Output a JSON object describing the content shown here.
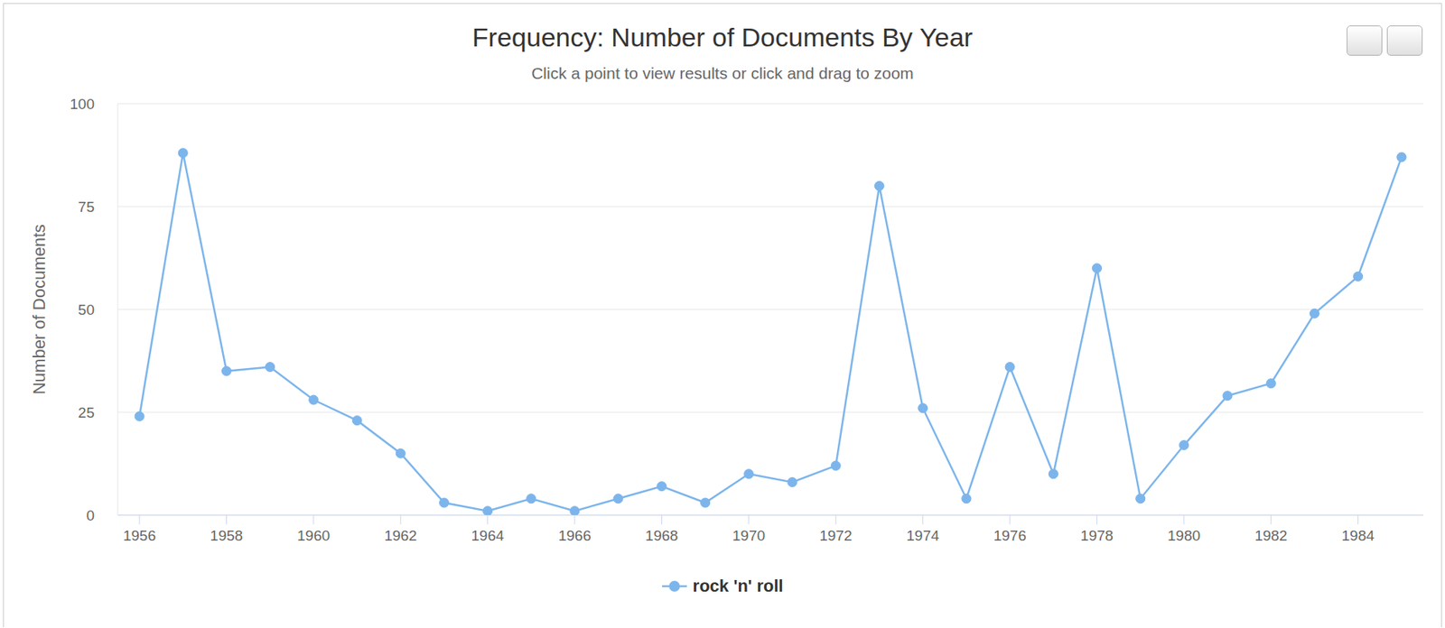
{
  "chart_data": {
    "type": "line",
    "title": "Frequency: Number of Documents By Year",
    "subtitle": "Click a point to view results or click and drag to zoom",
    "y_label": "Number of Documents",
    "x": [
      1956,
      1957,
      1958,
      1959,
      1960,
      1961,
      1962,
      1963,
      1964,
      1965,
      1966,
      1967,
      1968,
      1969,
      1970,
      1971,
      1972,
      1973,
      1974,
      1975,
      1976,
      1977,
      1978,
      1979,
      1980,
      1981,
      1982,
      1983,
      1984,
      1985
    ],
    "series": [
      {
        "name": "rock 'n' roll",
        "color": "#7cb5ec",
        "marker": "circle",
        "values": [
          24,
          88,
          35,
          36,
          28,
          23,
          15,
          3,
          1,
          4,
          1,
          4,
          7,
          3,
          10,
          8,
          12,
          80,
          26,
          4,
          36,
          10,
          60,
          4,
          17,
          29,
          32,
          49,
          58,
          87
        ]
      }
    ],
    "xlim": [
      1955.5,
      1985.5
    ],
    "xticks": [
      1956,
      1958,
      1960,
      1962,
      1964,
      1966,
      1968,
      1970,
      1972,
      1974,
      1976,
      1978,
      1980,
      1982,
      1984
    ],
    "ylim": [
      0,
      100
    ],
    "yticks": [
      0,
      25,
      50,
      75,
      100
    ],
    "grid": true,
    "legend": "bottom"
  }
}
